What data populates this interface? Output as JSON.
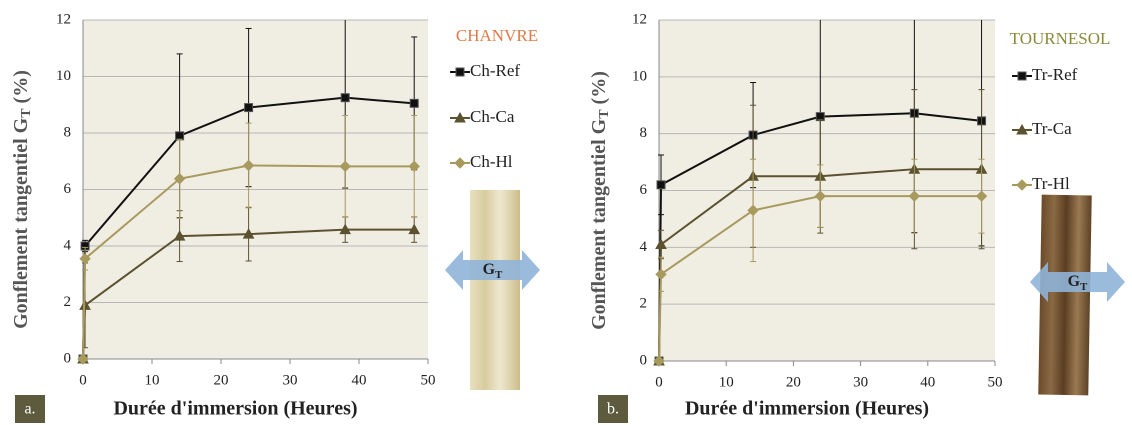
{
  "chart_data": [
    {
      "type": "line",
      "title": "CHANVRE",
      "title_color": "#e07a45",
      "panel_label": "a.",
      "y_label": {
        "text": "Gonflement tangentiel G",
        "subscript": "T",
        "suffix": " (%)"
      },
      "x_label": "Durée d'immersion (Heures)",
      "annotation": {
        "text": "G",
        "subscript": "T"
      },
      "x": [
        0,
        0.3,
        14,
        24,
        38,
        48
      ],
      "series": [
        {
          "name": "Ch-Ref",
          "color": "#111111",
          "marker": "square",
          "values": [
            0,
            4.0,
            7.9,
            8.9,
            9.25,
            9.05
          ],
          "errors": [
            0,
            0.2,
            2.9,
            2.8,
            3.2,
            2.35
          ]
        },
        {
          "name": "Ch-Ca",
          "color": "#5c5230",
          "marker": "triangle",
          "values": [
            0,
            1.9,
            4.35,
            4.42,
            4.58,
            4.58
          ],
          "errors": [
            0,
            1.5,
            0.9,
            0.95,
            0.45,
            0.45
          ]
        },
        {
          "name": "Ch-Hl",
          "color": "#a89a5e",
          "marker": "diamond",
          "values": [
            0,
            3.55,
            6.38,
            6.85,
            6.82,
            6.82
          ],
          "errors": [
            0,
            0.4,
            1.4,
            1.5,
            1.8,
            1.8
          ]
        }
      ],
      "xlim": [
        0,
        50
      ],
      "xticks": [
        0,
        10,
        20,
        30,
        40,
        50
      ],
      "ylim": [
        0,
        12
      ],
      "yticks": [
        0,
        2,
        4,
        6,
        8,
        10,
        12
      ],
      "grid": true
    },
    {
      "type": "line",
      "title": "TOURNESOL",
      "title_color": "#8a8a3a",
      "panel_label": "b.",
      "y_label": {
        "text": "Gonflement tangentiel G",
        "subscript": "T",
        "suffix": " (%)"
      },
      "x_label": "Durée d'immersion (Heures)",
      "annotation": {
        "text": "G",
        "subscript": "T"
      },
      "x": [
        0,
        0.3,
        14,
        24,
        38,
        48
      ],
      "series": [
        {
          "name": "Tr-Ref",
          "color": "#111111",
          "marker": "square",
          "values": [
            0,
            6.2,
            7.95,
            8.6,
            8.72,
            8.45
          ],
          "errors": [
            0,
            1.05,
            1.85,
            3.9,
            4.2,
            4.4
          ]
        },
        {
          "name": "Tr-Ca",
          "color": "#5c5230",
          "marker": "triangle",
          "values": [
            0,
            4.1,
            6.5,
            6.5,
            6.75,
            6.75
          ],
          "errors": [
            0,
            0.5,
            2.5,
            2.0,
            2.8,
            2.8
          ]
        },
        {
          "name": "Tr-Hl",
          "color": "#a89a5e",
          "marker": "diamond",
          "values": [
            0,
            3.05,
            5.3,
            5.8,
            5.8,
            5.8
          ],
          "errors": [
            0,
            0.6,
            1.8,
            1.1,
            1.3,
            1.3
          ]
        }
      ],
      "xlim": [
        0,
        50
      ],
      "xticks": [
        0,
        10,
        20,
        30,
        40,
        50
      ],
      "ylim": [
        0,
        12
      ],
      "yticks": [
        0,
        2,
        4,
        6,
        8,
        10,
        12
      ],
      "grid": true
    }
  ]
}
